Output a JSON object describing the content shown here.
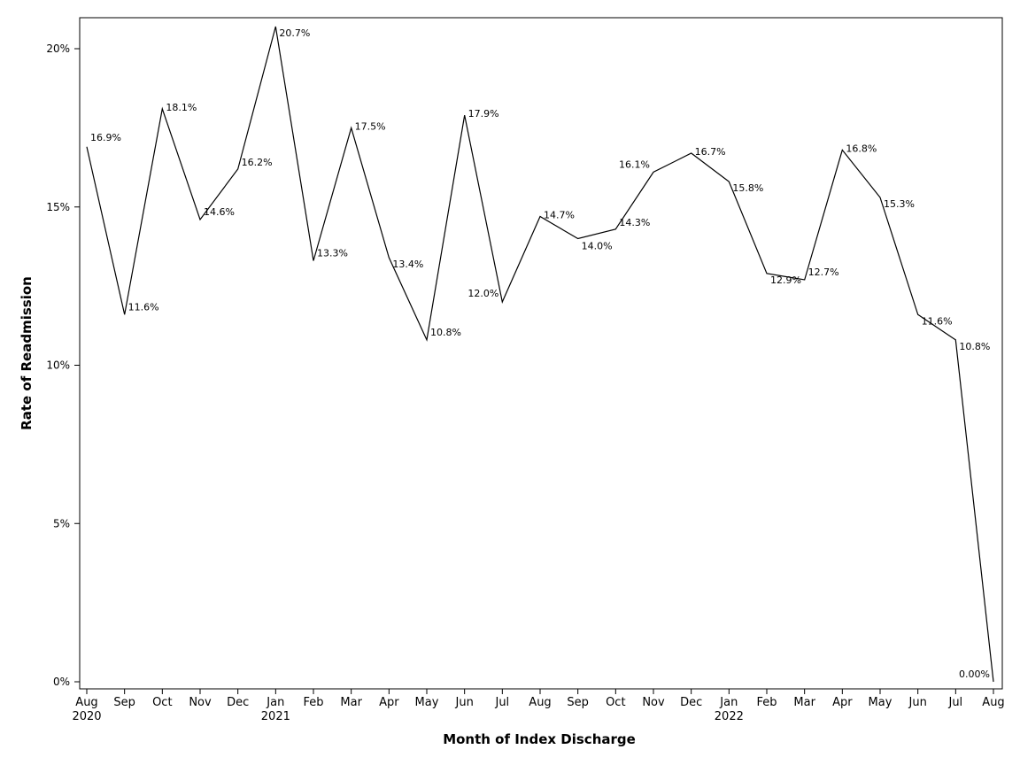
{
  "chart_data": {
    "type": "line",
    "xlabel": "Month of Index Discharge",
    "ylabel": "Rate of Readmission",
    "ylim": [
      0,
      20
    ],
    "yticks": [
      0,
      5,
      10,
      15,
      20
    ],
    "ytick_labels": [
      "0%",
      "5%",
      "10%",
      "15%",
      "20%"
    ],
    "grid": false,
    "legend": "none",
    "categories": [
      "Aug",
      "Sep",
      "Oct",
      "Nov",
      "Dec",
      "Jan",
      "Feb",
      "Mar",
      "Apr",
      "May",
      "Jun",
      "Jul",
      "Aug",
      "Sep",
      "Oct",
      "Nov",
      "Dec",
      "Jan",
      "Feb",
      "Mar",
      "Apr",
      "May",
      "Jun",
      "Jul",
      "Aug"
    ],
    "year_labels": [
      {
        "index": 0,
        "label": "2020"
      },
      {
        "index": 5,
        "label": "2021"
      },
      {
        "index": 17,
        "label": "2022"
      }
    ],
    "series": [
      {
        "name": "Rate of Readmission",
        "values": [
          16.9,
          11.6,
          18.1,
          14.6,
          16.2,
          20.7,
          13.3,
          17.5,
          13.4,
          10.8,
          17.9,
          12.0,
          14.7,
          14.0,
          14.3,
          16.1,
          16.7,
          15.8,
          12.9,
          12.7,
          16.8,
          15.3,
          11.6,
          10.8,
          0.0
        ],
        "labels": [
          "16.9%",
          "11.6%",
          "18.1%",
          "14.6%",
          "16.2%",
          "20.7%",
          "13.3%",
          "17.5%",
          "13.4%",
          "10.8%",
          "17.9%",
          "12.0%",
          "14.7%",
          "14.0%",
          "14.3%",
          "16.1%",
          "16.7%",
          "15.8%",
          "12.9%",
          "12.7%",
          "16.8%",
          "15.3%",
          "11.6%",
          "10.8%",
          "0.00%"
        ]
      }
    ]
  }
}
